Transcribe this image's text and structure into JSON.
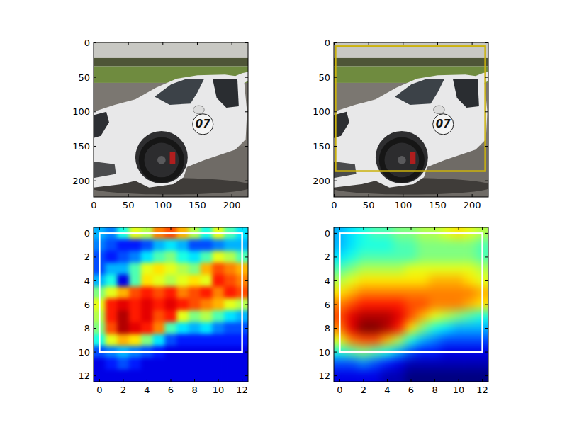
{
  "chart_data": [
    {
      "type": "image",
      "xlim": [
        -0.5,
        223.5
      ],
      "ylim": [
        223.5,
        -0.5
      ],
      "xticks": [
        0,
        50,
        100,
        150,
        200
      ],
      "yticks": [
        0,
        50,
        100,
        150,
        200
      ],
      "annotations": [
        {
          "text": "07",
          "x": 158,
          "y": 118
        }
      ]
    },
    {
      "type": "image",
      "xlim": [
        -0.5,
        223.5
      ],
      "ylim": [
        223.5,
        -0.5
      ],
      "xticks": [
        0,
        50,
        100,
        150,
        200
      ],
      "yticks": [
        0,
        50,
        100,
        150,
        200
      ],
      "annotations": [
        {
          "text": "07",
          "x": 158,
          "y": 118
        }
      ],
      "box": {
        "x": [
          2,
          219
        ],
        "y": [
          5,
          186
        ],
        "color": "#cbb20d"
      }
    },
    {
      "type": "heatmap",
      "xlim": [
        -0.5,
        12.5
      ],
      "ylim": [
        12.5,
        -0.5
      ],
      "xticks": [
        0,
        2,
        4,
        6,
        8,
        10,
        12
      ],
      "yticks": [
        0,
        2,
        4,
        6,
        8,
        10,
        12
      ],
      "zlim": [
        0,
        1
      ],
      "cells": [
        [
          0.3,
          0.25,
          0.4,
          0.6,
          0.55,
          0.75,
          0.8,
          0.7,
          0.55,
          0.4,
          0.6,
          0.45,
          0.35
        ],
        [
          0.25,
          0.2,
          0.15,
          0.15,
          0.2,
          0.3,
          0.35,
          0.3,
          0.2,
          0.2,
          0.25,
          0.3,
          0.3
        ],
        [
          0.2,
          0.15,
          0.2,
          0.25,
          0.35,
          0.45,
          0.5,
          0.4,
          0.35,
          0.45,
          0.6,
          0.55,
          0.45
        ],
        [
          0.2,
          0.3,
          0.3,
          0.45,
          0.6,
          0.65,
          0.6,
          0.55,
          0.5,
          0.7,
          0.8,
          0.75,
          0.7
        ],
        [
          0.3,
          0.4,
          0.1,
          0.45,
          0.65,
          0.6,
          0.55,
          0.6,
          0.65,
          0.6,
          0.85,
          0.8,
          0.75
        ],
        [
          0.5,
          0.6,
          0.7,
          0.8,
          0.85,
          0.8,
          0.85,
          0.75,
          0.8,
          0.85,
          0.75,
          0.85,
          0.8
        ],
        [
          0.6,
          0.85,
          0.9,
          0.85,
          0.9,
          0.85,
          0.9,
          0.85,
          0.8,
          0.75,
          0.7,
          0.6,
          0.55
        ],
        [
          0.55,
          0.85,
          0.95,
          0.85,
          0.9,
          0.8,
          0.85,
          0.6,
          0.5,
          0.55,
          0.45,
          0.35,
          0.3
        ],
        [
          0.5,
          0.8,
          0.95,
          0.9,
          0.85,
          0.75,
          0.45,
          0.35,
          0.3,
          0.35,
          0.25,
          0.2,
          0.2
        ],
        [
          0.4,
          0.6,
          0.7,
          0.65,
          0.5,
          0.35,
          0.2,
          0.15,
          0.15,
          0.15,
          0.15,
          0.15,
          0.15
        ],
        [
          0.2,
          0.25,
          0.3,
          0.25,
          0.2,
          0.15,
          0.1,
          0.1,
          0.1,
          0.1,
          0.1,
          0.1,
          0.1
        ],
        [
          0.1,
          0.15,
          0.2,
          0.15,
          0.1,
          0.1,
          0.1,
          0.1,
          0.1,
          0.1,
          0.1,
          0.1,
          0.1
        ],
        [
          0.1,
          0.1,
          0.1,
          0.1,
          0.1,
          0.1,
          0.1,
          0.1,
          0.1,
          0.1,
          0.1,
          0.1,
          0.1
        ]
      ],
      "box": {
        "x": [
          0,
          12
        ],
        "y": [
          0,
          10
        ],
        "color": "#ffffff"
      }
    },
    {
      "type": "heatmap",
      "xlim": [
        -0.5,
        12.5
      ],
      "ylim": [
        12.5,
        -0.5
      ],
      "xticks": [
        0,
        2,
        4,
        6,
        8,
        10,
        12
      ],
      "yticks": [
        0,
        2,
        4,
        6,
        8,
        10,
        12
      ],
      "zlim": [
        0,
        1
      ],
      "cells": [
        [
          0.3,
          0.35,
          0.4,
          0.45,
          0.45,
          0.5,
          0.5,
          0.55,
          0.55,
          0.6,
          0.65,
          0.6,
          0.55
        ],
        [
          0.3,
          0.35,
          0.4,
          0.4,
          0.4,
          0.45,
          0.45,
          0.5,
          0.5,
          0.5,
          0.5,
          0.5,
          0.45
        ],
        [
          0.35,
          0.4,
          0.45,
          0.45,
          0.45,
          0.45,
          0.45,
          0.5,
          0.5,
          0.5,
          0.5,
          0.5,
          0.45
        ],
        [
          0.45,
          0.5,
          0.55,
          0.55,
          0.55,
          0.55,
          0.6,
          0.6,
          0.6,
          0.6,
          0.6,
          0.6,
          0.55
        ],
        [
          0.55,
          0.6,
          0.65,
          0.65,
          0.65,
          0.65,
          0.65,
          0.65,
          0.7,
          0.7,
          0.7,
          0.65,
          0.6
        ],
        [
          0.65,
          0.7,
          0.75,
          0.75,
          0.75,
          0.75,
          0.75,
          0.75,
          0.75,
          0.75,
          0.75,
          0.75,
          0.7
        ],
        [
          0.75,
          0.8,
          0.85,
          0.85,
          0.85,
          0.85,
          0.8,
          0.8,
          0.75,
          0.75,
          0.75,
          0.7,
          0.65
        ],
        [
          0.8,
          0.9,
          0.95,
          0.95,
          0.95,
          0.9,
          0.8,
          0.7,
          0.6,
          0.55,
          0.5,
          0.45,
          0.4
        ],
        [
          0.75,
          0.9,
          1.0,
          1.0,
          0.95,
          0.85,
          0.65,
          0.5,
          0.4,
          0.35,
          0.3,
          0.3,
          0.3
        ],
        [
          0.6,
          0.75,
          0.8,
          0.8,
          0.7,
          0.55,
          0.4,
          0.3,
          0.25,
          0.2,
          0.2,
          0.2,
          0.2
        ],
        [
          0.4,
          0.45,
          0.5,
          0.45,
          0.4,
          0.3,
          0.2,
          0.15,
          0.15,
          0.1,
          0.1,
          0.1,
          0.1
        ],
        [
          0.2,
          0.2,
          0.25,
          0.2,
          0.15,
          0.1,
          0.05,
          0.05,
          0.05,
          0.05,
          0.05,
          0.05,
          0.05
        ],
        [
          0.1,
          0.1,
          0.1,
          0.1,
          0.05,
          0.05,
          0.0,
          0.0,
          0.0,
          0.0,
          0.0,
          0.0,
          0.0
        ]
      ],
      "box": {
        "x": [
          0,
          12
        ],
        "y": [
          0,
          10
        ],
        "color": "#ffffff"
      }
    }
  ]
}
